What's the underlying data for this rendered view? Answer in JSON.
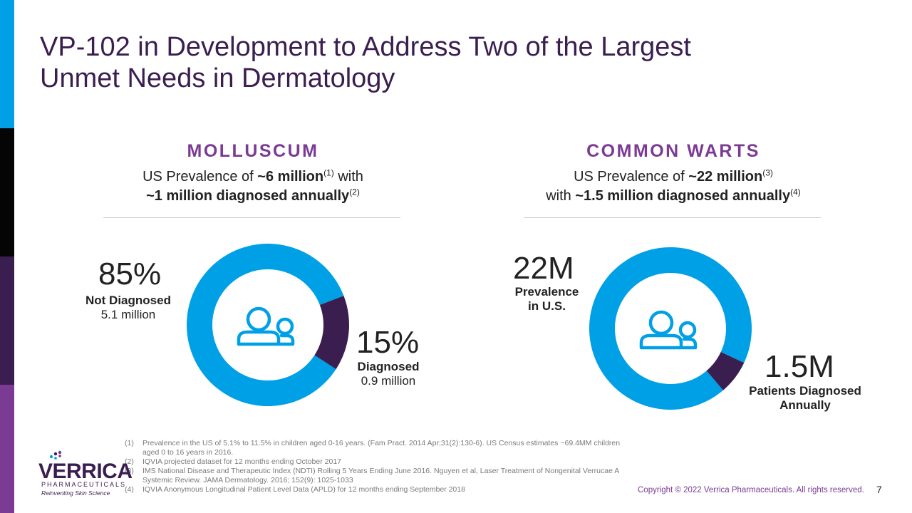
{
  "title": "VP-102 in Development to Address Two of the Largest Unmet Needs in Dermatology",
  "colors": {
    "light": "#00a0e6",
    "dark": "#3a1e50",
    "accent": "#7b3a94"
  },
  "molluscum": {
    "heading": "MOLLUSCUM",
    "sub_pre": "US Prevalence of ",
    "sub_bold1": "~6 million",
    "sub_sup1": "(1)",
    "sub_mid": " with",
    "sub_bold2": "~1 million diagnosed annually",
    "sub_sup2": "(2)",
    "left_value": "85%",
    "left_label": "Not Diagnosed",
    "left_sub": "5.1 million",
    "right_value": "15%",
    "right_label": "Diagnosed",
    "right_sub": "0.9 million",
    "icon": "people-icon"
  },
  "warts": {
    "heading": "COMMON WARTS",
    "sub_pre": "US Prevalence of ",
    "sub_bold1": "~22 million",
    "sub_sup1": "(3)",
    "sub_mid": "with ",
    "sub_bold2": "~1.5 million diagnosed annually",
    "sub_sup2": "(4)",
    "left_value": "22M",
    "left_label1": "Prevalence",
    "left_label2": "in U.S.",
    "right_value": "1.5M",
    "right_label1": "Patients Diagnosed",
    "right_label2": "Annually",
    "icon": "people-icon"
  },
  "chart_data": [
    {
      "type": "pie",
      "categories": [
        "Not Diagnosed",
        "Diagnosed"
      ],
      "values": [
        85,
        15
      ]
    },
    {
      "type": "pie",
      "categories": [
        "Prevalence in U.S.",
        "Patients Diagnosed Annually"
      ],
      "values": [
        20.5,
        1.5
      ]
    }
  ],
  "footnotes": [
    {
      "num": "(1)",
      "text": "Prevalence in the US of 5.1% to 11.5% in children aged 0-16 years. (Fam Pract. 2014 Apr;31(2):130-6). US Census estimates ~69.4MM children aged 0 to 16 years in 2016."
    },
    {
      "num": "(2)",
      "text": "IQVIA projected dataset for 12 months ending October 2017"
    },
    {
      "num": "(3)",
      "text": "IMS National Disease and Therapeutic Index (NDTI) Rolling 5 Years Ending June 2016. Nguyen et al, Laser Treatment of Nongenital Verrucae A Systemic Review. JAMA Dermatology. 2016; 152(9): 1025-1033"
    },
    {
      "num": "(4)",
      "text": "IQVIA Anonymous Longitudinal Patient Level Data (APLD) for 12 months ending September 2018"
    }
  ],
  "logo": {
    "name": "VERRICA",
    "sub": "PHARMACEUTICALS",
    "tagline": "Reinventing Skin Science"
  },
  "copyright": "Copyright © 2022 Verrica Pharmaceuticals. All rights reserved.",
  "page_number": "7"
}
